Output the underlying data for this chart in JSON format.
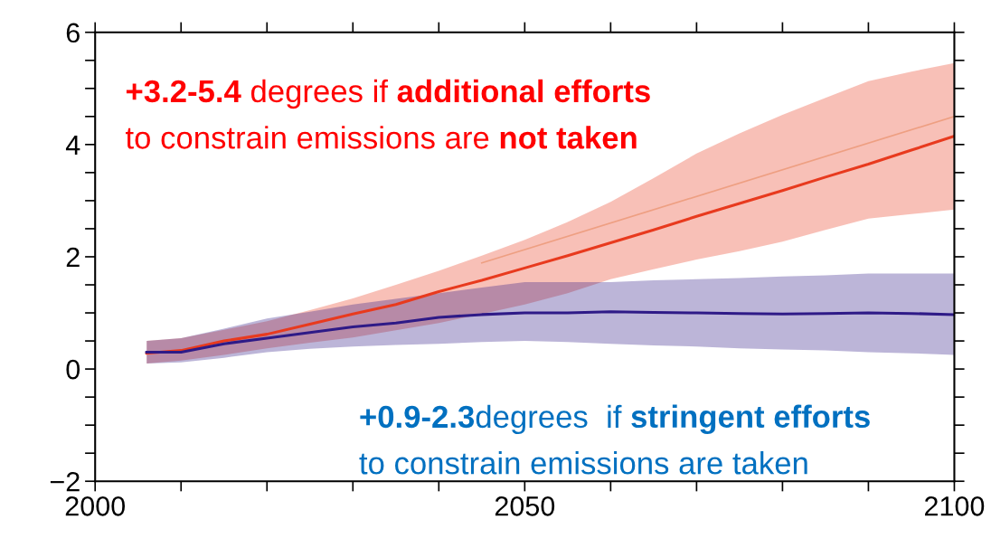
{
  "chart_data": {
    "type": "line",
    "x": [
      2006,
      2010,
      2015,
      2020,
      2025,
      2030,
      2035,
      2040,
      2045,
      2050,
      2055,
      2060,
      2065,
      2070,
      2075,
      2080,
      2085,
      2090,
      2095,
      2100
    ],
    "series": [
      {
        "color": "#e83a1e",
        "values": [
          0.28,
          0.33,
          0.5,
          0.62,
          0.8,
          0.98,
          1.15,
          1.38,
          1.58,
          1.8,
          2.02,
          2.25,
          2.48,
          2.72,
          2.95,
          3.18,
          3.42,
          3.65,
          3.9,
          4.15
        ],
        "lower": [
          0.1,
          0.15,
          0.25,
          0.37,
          0.47,
          0.56,
          0.69,
          0.82,
          0.98,
          1.15,
          1.35,
          1.6,
          1.78,
          1.95,
          2.1,
          2.27,
          2.48,
          2.68,
          2.76,
          2.84
        ],
        "upper": [
          0.5,
          0.55,
          0.7,
          0.85,
          1.05,
          1.26,
          1.5,
          1.75,
          2.02,
          2.3,
          2.62,
          2.98,
          3.4,
          3.84,
          4.2,
          4.53,
          4.83,
          5.13,
          5.3,
          5.45
        ]
      },
      {
        "color": "#2e1a87",
        "values": [
          0.3,
          0.3,
          0.45,
          0.55,
          0.65,
          0.75,
          0.82,
          0.92,
          0.97,
          1.0,
          1.0,
          1.02,
          1.01,
          1.0,
          0.99,
          0.98,
          0.99,
          1.0,
          0.99,
          0.97
        ],
        "lower": [
          0.1,
          0.12,
          0.2,
          0.3,
          0.36,
          0.4,
          0.43,
          0.45,
          0.48,
          0.5,
          0.48,
          0.45,
          0.42,
          0.4,
          0.37,
          0.35,
          0.33,
          0.3,
          0.28,
          0.25
        ],
        "upper": [
          0.5,
          0.55,
          0.72,
          0.9,
          1.02,
          1.15,
          1.25,
          1.35,
          1.45,
          1.55,
          1.55,
          1.55,
          1.58,
          1.6,
          1.62,
          1.65,
          1.67,
          1.7,
          1.7,
          1.7
        ]
      },
      {
        "type": "line",
        "color": "#ee9f82",
        "x": [
          2045,
          2100
        ],
        "values": [
          1.89,
          4.5
        ]
      }
    ],
    "xlim": [
      2000,
      2100
    ],
    "xticks": [
      2000,
      {
        "value": 2010,
        "label": null
      },
      {
        "value": 2020,
        "label": null
      },
      {
        "value": 2030,
        "label": null
      },
      {
        "value": 2040,
        "label": null
      },
      2050,
      {
        "value": 2060,
        "label": null
      },
      {
        "value": 2070,
        "label": null
      },
      {
        "value": 2080,
        "label": null
      },
      {
        "value": 2090,
        "label": null
      },
      2100
    ],
    "ylim": [
      -2,
      6
    ],
    "yticks": [
      {
        "value": -2,
        "label": "−2"
      },
      {
        "value": -1.5,
        "label": null
      },
      {
        "value": -1,
        "label": null
      },
      {
        "value": -0.5,
        "label": null
      },
      0,
      {
        "value": 0.5,
        "label": null
      },
      {
        "value": 1,
        "label": null
      },
      {
        "value": 1.5,
        "label": null
      },
      2,
      {
        "value": 2.5,
        "label": null
      },
      {
        "value": 3,
        "label": null
      },
      {
        "value": 3.5,
        "label": null
      },
      4,
      {
        "value": 4.5,
        "label": null
      },
      {
        "value": 5,
        "label": null
      },
      {
        "value": 5.5,
        "label": null
      },
      6
    ],
    "grid": false,
    "legend": false,
    "annotations": [
      "+3.2-5.4",
      " degrees if ",
      "additional efforts",
      "to constrain emissions are ",
      "not taken",
      "+0.9-2.3",
      "degrees  if ",
      "stringent efforts",
      "to constrain emissions are taken"
    ]
  }
}
